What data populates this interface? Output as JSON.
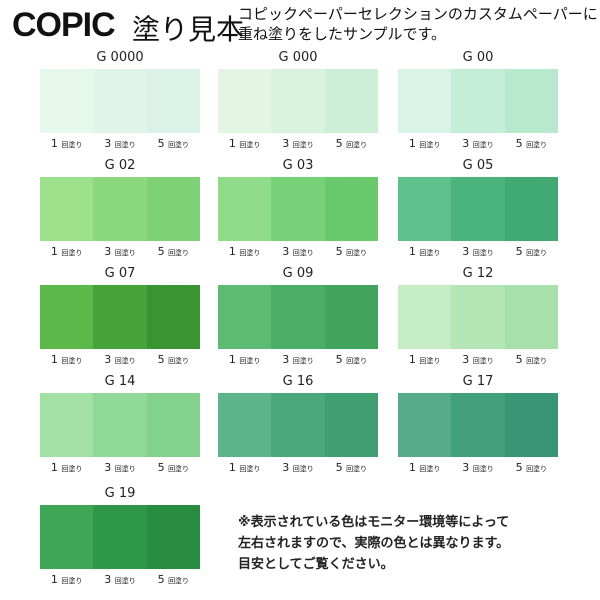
{
  "header": {
    "logo": "COPIC",
    "subtitle": "塗り見本",
    "description_line1": "コピックペーパーセレクションのカスタムペーパーに",
    "description_line2": "重ね塗りをしたサンプルです。"
  },
  "coat_labels": [
    {
      "n": "1",
      "unit": "回塗り"
    },
    {
      "n": "3",
      "unit": "回塗り"
    },
    {
      "n": "5",
      "unit": "回塗り"
    }
  ],
  "swatches": [
    {
      "name": "G 0000",
      "colors": [
        "#e6f7ec",
        "#e0f5ea",
        "#dbf3e7"
      ]
    },
    {
      "name": "G 000",
      "colors": [
        "#e3f6e6",
        "#daf3e1",
        "#cdeed8"
      ]
    },
    {
      "name": "G 00",
      "colors": [
        "#d9f4e6",
        "#c5eed8",
        "#b8e9cf"
      ]
    },
    {
      "name": "G 02",
      "colors": [
        "#9de08c",
        "#8bd87e",
        "#7fd176"
      ]
    },
    {
      "name": "G 03",
      "colors": [
        "#8fdb8a",
        "#77d178",
        "#68c86c"
      ]
    },
    {
      "name": "G 05",
      "colors": [
        "#5ec08a",
        "#4bb47c",
        "#40aa72"
      ]
    },
    {
      "name": "G 07",
      "colors": [
        "#5cb84a",
        "#45a33a",
        "#3a9432"
      ]
    },
    {
      "name": "G 09",
      "colors": [
        "#5dbb74",
        "#4aae66",
        "#42a35d"
      ]
    },
    {
      "name": "G 12",
      "colors": [
        "#c5ecc4",
        "#b3e5b5",
        "#a8e0ab"
      ]
    },
    {
      "name": "G 14",
      "colors": [
        "#a2e0a6",
        "#8fd897",
        "#82d18d"
      ]
    },
    {
      "name": "G 16",
      "colors": [
        "#5cb58a",
        "#4aa87c",
        "#3f9e72"
      ]
    },
    {
      "name": "G 17",
      "colors": [
        "#55ab8b",
        "#43a07f",
        "#389676"
      ]
    },
    {
      "name": "G 19",
      "colors": [
        "#3fa655",
        "#2f9848",
        "#278c40"
      ]
    }
  ],
  "note": {
    "line1": "※表示されている色はモニター環境等によって",
    "line2": "左右されますので、実際の色とは異なります。",
    "line3": "目安としてご覧ください。"
  }
}
